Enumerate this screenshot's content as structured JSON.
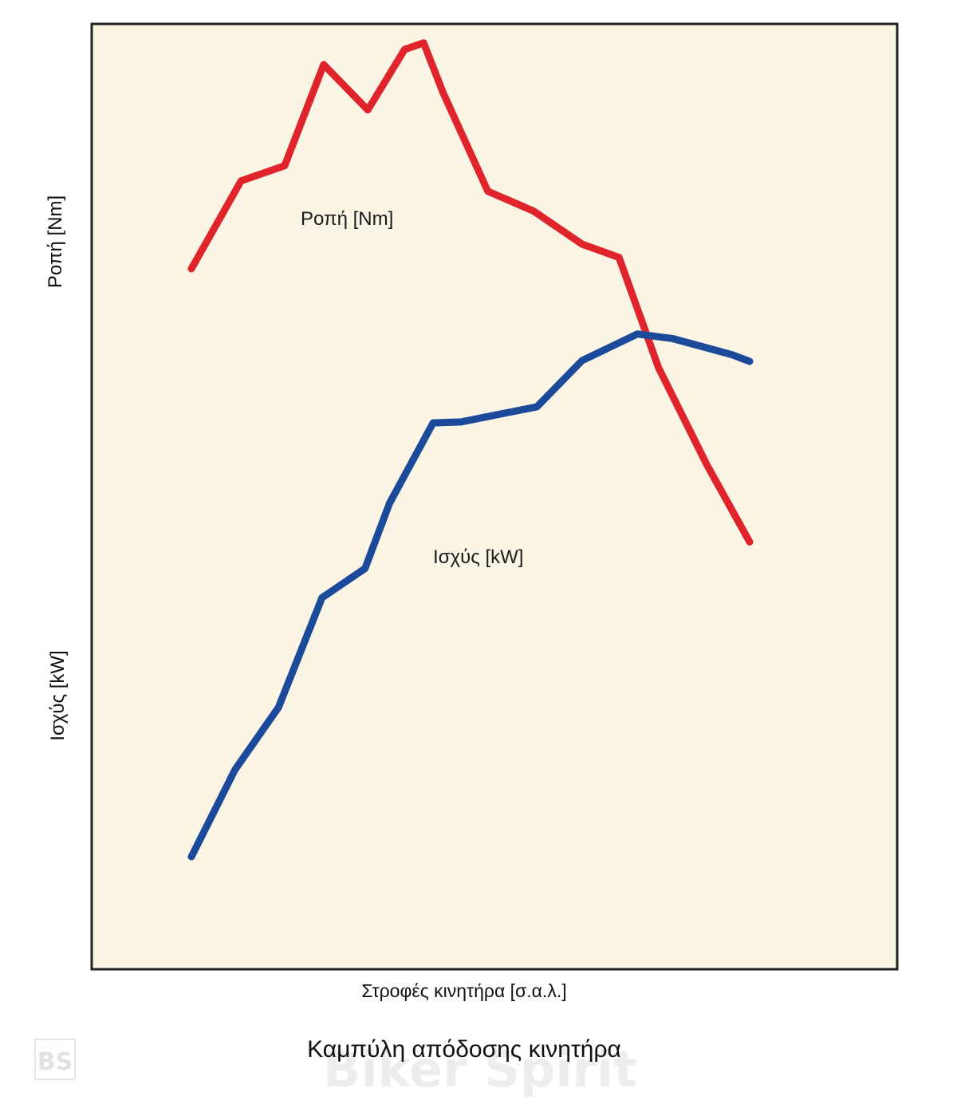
{
  "chart_data": {
    "type": "line",
    "title": "Καμπύλη απόδοσης κινητήρα",
    "xlabel": "Στροφές κινητήρα [σ.α.λ.]",
    "ylabel_top": "Ροπή [Nm]",
    "ylabel_bottom": "Ισχύς [kW]",
    "xlim": [
      0,
      100
    ],
    "ylim": [
      0,
      100
    ],
    "grid": false,
    "series": [
      {
        "name": "Ροπή [Nm]",
        "color": "#e0242b",
        "x": [
          0,
          8.9,
          16.7,
          23.7,
          31.6,
          38.2,
          41.6,
          45.1,
          53.1,
          61.3,
          70.0,
          76.6,
          83.7,
          92.3,
          100
        ],
        "y": [
          74.1,
          83.4,
          85.0,
          95.7,
          90.9,
          97.3,
          98.0,
          92.7,
          82.3,
          80.2,
          76.7,
          75.3,
          63.6,
          53.4,
          45.2
        ]
      },
      {
        "name": "Ισχύς [kW]",
        "color": "#1a4a99",
        "x": [
          0,
          7.8,
          15.6,
          23.4,
          31.1,
          35.5,
          43.3,
          48.3,
          61.9,
          70.0,
          79.9,
          86.3,
          96.9,
          100
        ],
        "y": [
          11.9,
          21.1,
          27.7,
          39.3,
          42.4,
          49.3,
          57.8,
          57.9,
          59.5,
          64.4,
          67.2,
          66.7,
          65.0,
          64.3
        ]
      }
    ],
    "annotations": [
      {
        "text": "Ροπή [Nm]",
        "series": 0
      },
      {
        "text": "Ισχύς [kW]",
        "series": 1
      }
    ],
    "plot_background": "#fbf5e6",
    "frame_color": "#222222"
  },
  "watermark": {
    "text": "Biker Spirit",
    "logo": "BS"
  }
}
